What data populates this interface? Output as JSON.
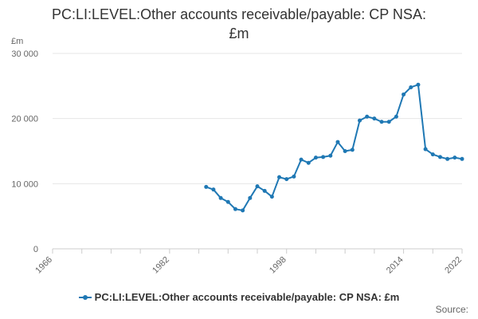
{
  "chart_data": {
    "type": "line",
    "title_lines": [
      "PC:LI:LEVEL:Other accounts receivable/payable: CP NSA:",
      "£m"
    ],
    "ylabel": "£m",
    "xlim": [
      1966,
      2022
    ],
    "ylim": [
      0,
      30000
    ],
    "x_ticks": [
      1966,
      1982,
      1998,
      2014,
      2022
    ],
    "y_ticks": [
      {
        "value": 0,
        "label": "0"
      },
      {
        "value": 10000,
        "label": "10 000"
      },
      {
        "value": 20000,
        "label": "20 000"
      },
      {
        "value": 30000,
        "label": "30 000"
      }
    ],
    "grid": true,
    "legend_position": "bottom",
    "series": [
      {
        "name": "PC:LI:LEVEL:Other accounts receivable/payable: CP NSA: £m",
        "color": "#1f78b4",
        "x": [
          1987,
          1988,
          1989,
          1990,
          1991,
          1992,
          1993,
          1994,
          1995,
          1996,
          1997,
          1998,
          1999,
          2000,
          2001,
          2002,
          2003,
          2004,
          2005,
          2006,
          2007,
          2008,
          2009,
          2010,
          2011,
          2012,
          2013,
          2014,
          2015,
          2016,
          2017,
          2018,
          2019,
          2020,
          2021,
          2022
        ],
        "values": [
          9500,
          9100,
          7800,
          7200,
          6100,
          5900,
          7800,
          9600,
          8900,
          8000,
          11000,
          10700,
          11100,
          13700,
          13200,
          14000,
          14100,
          14300,
          16400,
          15000,
          15200,
          19700,
          20300,
          20000,
          19500,
          19500,
          20300,
          23700,
          24800,
          25200,
          15300,
          14500,
          14100,
          13800,
          14000,
          13800
        ]
      }
    ]
  },
  "footer": {
    "source_label": "Source:"
  }
}
